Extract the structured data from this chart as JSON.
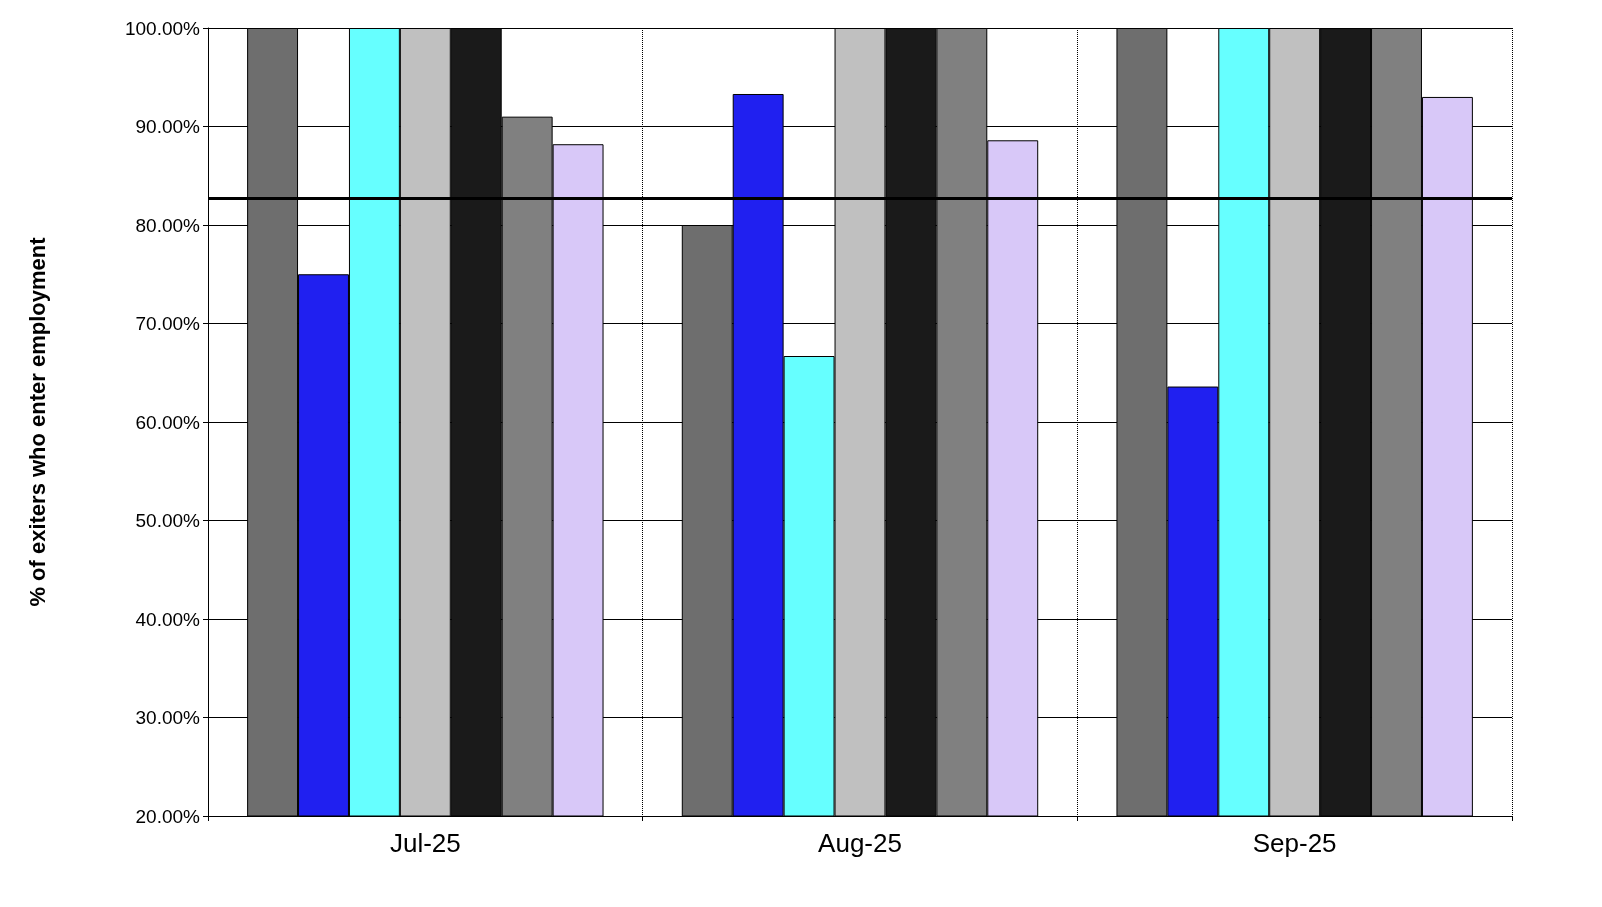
{
  "chart_data": {
    "type": "bar",
    "ylabel": "% of exiters who enter employment",
    "categories": [
      "Jul-25",
      "Aug-25",
      "Sep-25"
    ],
    "series": [
      {
        "color": "#6e6e6e",
        "values": [
          100,
          80,
          100
        ]
      },
      {
        "color": "#2020f0",
        "values": [
          75,
          93.3,
          63.6
        ]
      },
      {
        "color": "#66ffff",
        "values": [
          100,
          66.7,
          100
        ]
      },
      {
        "color": "#c0c0c0",
        "values": [
          100,
          100,
          100
        ]
      },
      {
        "color": "#1a1a1a",
        "values": [
          100,
          100,
          100
        ]
      },
      {
        "color": "#808080",
        "values": [
          91,
          100,
          100
        ]
      },
      {
        "color": "#d8c8f8",
        "values": [
          88.2,
          88.6,
          93
        ]
      }
    ],
    "ylim": [
      20,
      100
    ],
    "yticks": [
      {
        "value": 20,
        "label": "20.00%"
      },
      {
        "value": 30,
        "label": "30.00%"
      },
      {
        "value": 40,
        "label": "40.00%"
      },
      {
        "value": 50,
        "label": "50.00%"
      },
      {
        "value": 60,
        "label": "60.00%"
      },
      {
        "value": 70,
        "label": "70.00%"
      },
      {
        "value": 80,
        "label": "80.00%"
      },
      {
        "value": 90,
        "label": "90.00%"
      },
      {
        "value": 100,
        "label": "100.00%"
      }
    ],
    "ref_lines": [
      {
        "axis": "y",
        "value": 82.7,
        "color": "#000000"
      }
    ],
    "grid": true
  }
}
